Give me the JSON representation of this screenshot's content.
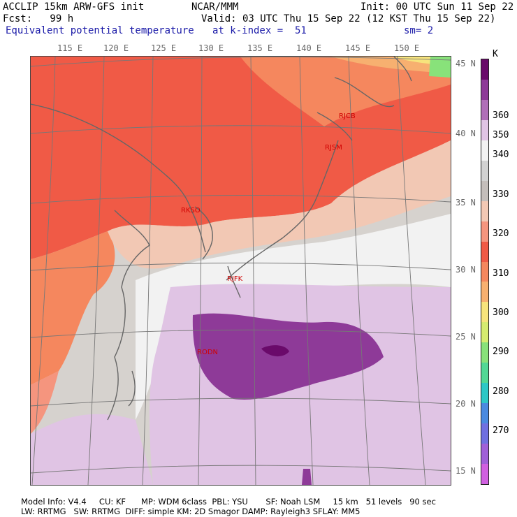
{
  "header": {
    "line1_left": "ACCLIP 15km ARW-GFS init",
    "line1_mid": "NCAR/MMM",
    "line1_right": "Init: 00 UTC Sun 11 Sep 22",
    "line2_left": "Fcst:   99 h",
    "line2_right": "Valid: 03 UTC Thu 15 Sep 22 (12 KST Thu 15 Sep 22)",
    "line3_left": "Equivalent potential temperature",
    "line3_mid": "at k-index =  51",
    "line3_right": "sm= 2"
  },
  "axes": {
    "lon_labels": [
      "115 E",
      "120 E",
      "125 E",
      "130 E",
      "135 E",
      "140 E",
      "145 E",
      "150 E"
    ],
    "lat_labels": [
      "45 N",
      "40 N",
      "35 N",
      "30 N",
      "25 N",
      "20 N",
      "15 N"
    ]
  },
  "colorbar": {
    "unit": "K",
    "labels": [
      "360",
      "350",
      "340",
      "330",
      "320",
      "310",
      "300",
      "290",
      "280",
      "270"
    ],
    "colors": [
      "#6a0a6a",
      "#8e3a98",
      "#b070b8",
      "#e0c4e4",
      "#f2f2f2",
      "#d2d2d2",
      "#c4bebb",
      "#f2c8b4",
      "#f5957e",
      "#f05a46",
      "#f5875e",
      "#f7b070",
      "#f7e47c",
      "#d6ec70",
      "#88e27a",
      "#52d895",
      "#2ec8c6",
      "#4a8ae0",
      "#7070e0",
      "#a060d8",
      "#d060e0"
    ]
  },
  "stations": [
    {
      "id": "RJCB"
    },
    {
      "id": "RJSM"
    },
    {
      "id": "RKSO"
    },
    {
      "id": "RJFK"
    },
    {
      "id": "RODN"
    }
  ],
  "footer": {
    "line1": "Model Info: V4.4     CU: KF      MP: WDM 6class  PBL: YSU       SF: Noah LSM     15 km   51 levels   90 sec",
    "line2": "LW: RRTMG   SW: RRTMG  DIFF: simple KM: 2D Smagor DAMP: Rayleigh3 SFLAY: MM5"
  }
}
